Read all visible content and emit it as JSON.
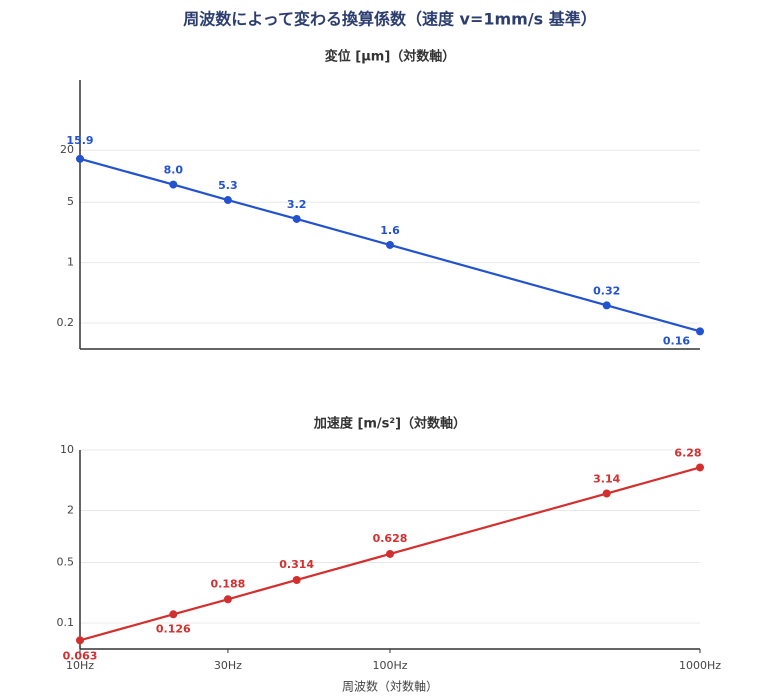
{
  "title": "周波数によって変わる換算係数（速度 v=1mm/s 基準）",
  "chart_data": [
    {
      "type": "line",
      "title": "変位 [μm]（対数軸）",
      "log_y": true,
      "log_x": true,
      "grid": true,
      "x": [
        10,
        20,
        30,
        50,
        100,
        500,
        1000
      ],
      "xlim": [
        10,
        1000
      ],
      "ylim": [
        0.1,
        130
      ],
      "yticks": [
        0.2,
        1,
        5,
        20
      ],
      "series": [
        {
          "name": "変位",
          "color": "#2352d0",
          "values": [
            15.9,
            8.0,
            5.3,
            3.2,
            1.6,
            0.32,
            0.16
          ],
          "value_labels": [
            "15.9",
            "8.0",
            "5.3",
            "3.2",
            "1.6",
            "0.32",
            "0.16"
          ]
        }
      ]
    },
    {
      "type": "line",
      "title": "加速度 [m/s²]（対数軸）",
      "log_y": true,
      "log_x": true,
      "grid": true,
      "xlabel": "周波数（対数軸）",
      "x": [
        10,
        20,
        30,
        50,
        100,
        500,
        1000
      ],
      "xlim": [
        10,
        1000
      ],
      "xticks": [
        {
          "value": 10,
          "label": "10Hz"
        },
        {
          "value": 30,
          "label": "30Hz"
        },
        {
          "value": 100,
          "label": "100Hz"
        },
        {
          "value": 1000,
          "label": "1000Hz"
        }
      ],
      "ylim": [
        0.05,
        10
      ],
      "yticks": [
        0.1,
        0.5,
        2,
        10
      ],
      "series": [
        {
          "name": "加速度",
          "color": "#d42f2f",
          "values": [
            0.063,
            0.126,
            0.188,
            0.314,
            0.628,
            3.14,
            6.28
          ],
          "value_labels": [
            "0.063",
            "0.126",
            "0.188",
            "0.314",
            "0.628",
            "3.14",
            "6.28"
          ]
        }
      ]
    }
  ]
}
